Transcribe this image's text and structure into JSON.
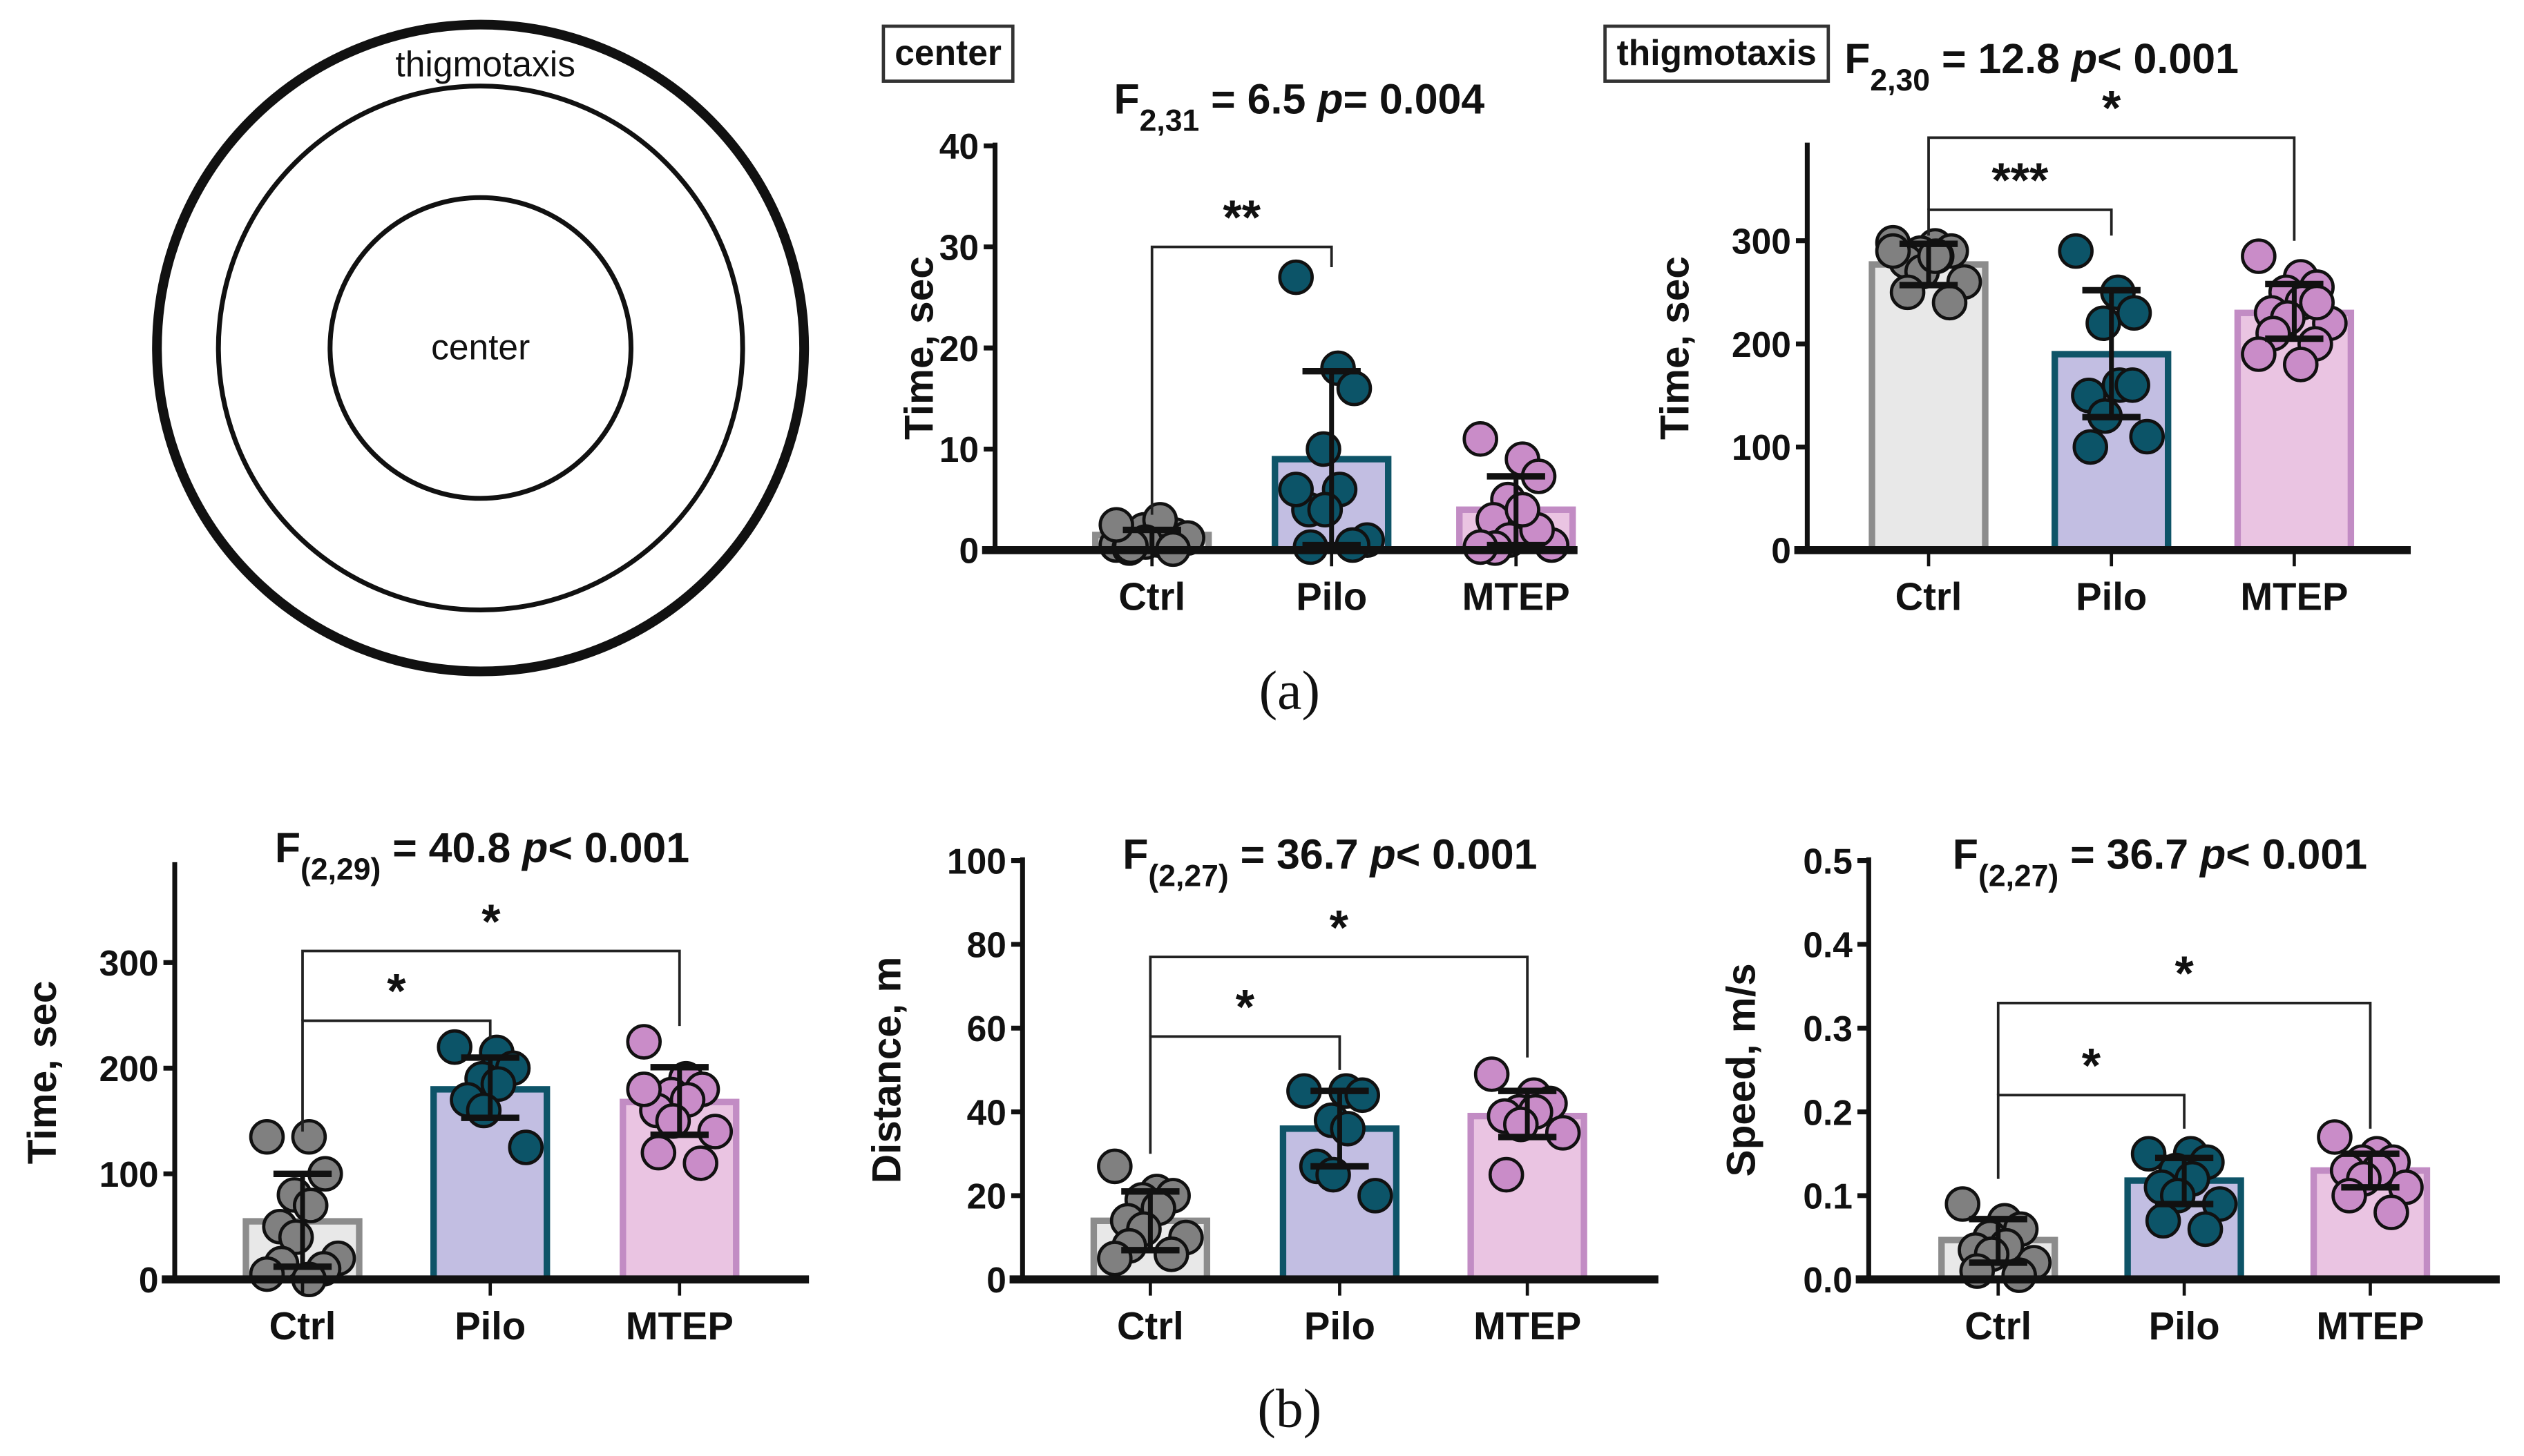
{
  "arena": {
    "outer_label": "thigmotaxis",
    "inner_label": "center"
  },
  "panel_labels": {
    "a": "(a)",
    "b": "(b)"
  },
  "zone_boxes": {
    "center": "center",
    "thigmotaxis": "thigmotaxis"
  },
  "colors": {
    "Ctrl": {
      "fill": "#e8e8e8",
      "stroke": "#8c8c8c",
      "point": "#808080"
    },
    "Pilo": {
      "fill": "#c2bee2",
      "stroke": "#0e5468",
      "point": "#0c5468"
    },
    "MTEP": {
      "fill": "#eac4e2",
      "stroke": "#c28cc4",
      "point": "#c98cc8"
    }
  },
  "chart_data": [
    {
      "type": "bar",
      "panel": "a",
      "zone": "center",
      "title": {
        "F": "F",
        "sub": "2,31",
        "eq": " = 6.5 ",
        "p": "p",
        "rest": "= 0.004"
      },
      "ylabel": "Time, sec",
      "ylim": [
        0,
        40
      ],
      "yticks": [
        "0",
        "10",
        "20",
        "30",
        "40"
      ],
      "ytick_values": [
        0,
        10,
        20,
        30,
        40
      ],
      "categories": [
        "Ctrl",
        "Pilo",
        "MTEP"
      ],
      "values": [
        1.5,
        9,
        4
      ],
      "error": [
        [
          0,
          2
        ],
        [
          0.5,
          17.7
        ],
        [
          0.5,
          7.3
        ]
      ],
      "points": [
        [
          0.5,
          1,
          1.5,
          2,
          3,
          0.2,
          0.8,
          1.2,
          0.4,
          0.1,
          2.5
        ],
        [
          27,
          18,
          16,
          10,
          6,
          4,
          4,
          1,
          0.3,
          0.5,
          6
        ],
        [
          11,
          9,
          7.3,
          5,
          3,
          3,
          1,
          0.5,
          0.2,
          2,
          0.3,
          4
        ]
      ],
      "significance": [
        {
          "from": 0,
          "to": 1,
          "y": 30,
          "left_end": 3.5,
          "right_end": 28,
          "label": "**"
        }
      ]
    },
    {
      "type": "bar",
      "panel": "a",
      "zone": "thigmotaxis",
      "title": {
        "F": "F",
        "sub": "2,30",
        "eq": " = 12.8 ",
        "p": "p",
        "rest": "< 0.001"
      },
      "ylabel": "Time, sec",
      "ylim": [
        0,
        392
      ],
      "yticks": [
        "0",
        "100",
        "200",
        "300"
      ],
      "ytick_values": [
        0,
        100,
        200,
        300
      ],
      "categories": [
        "Ctrl",
        "Pilo",
        "MTEP"
      ],
      "values": [
        277,
        190,
        230
      ],
      "error": [
        [
          257,
          297
        ],
        [
          129,
          252
        ],
        [
          205,
          258
        ]
      ],
      "points": [
        [
          298,
          295,
          290,
          288,
          285,
          280,
          270,
          260,
          250,
          240,
          290,
          285
        ],
        [
          290,
          250,
          230,
          220,
          160,
          150,
          130,
          110,
          100,
          160
        ],
        [
          285,
          265,
          255,
          250,
          240,
          230,
          225,
          220,
          210,
          200,
          190,
          180,
          240
        ]
      ],
      "significance": [
        {
          "from": 0,
          "to": 1,
          "y": 330,
          "left_end": 305,
          "right_end": 305,
          "label": "***"
        },
        {
          "from": 0,
          "to": 2,
          "y": 400,
          "left_end": 330,
          "right_end": 300,
          "label": "*"
        }
      ]
    },
    {
      "type": "bar",
      "panel": "b",
      "title": {
        "F": "F",
        "sub": "(2,29)",
        "eq": " = 40.8 ",
        "p": "p",
        "rest": "< 0.001"
      },
      "ylabel": "Time, sec",
      "ylim": [
        0,
        392
      ],
      "yticks": [
        "0",
        "100",
        "200",
        "300"
      ],
      "ytick_values": [
        0,
        100,
        200,
        300
      ],
      "categories": [
        "Ctrl",
        "Pilo",
        "MTEP"
      ],
      "values": [
        55,
        180,
        168
      ],
      "error": [
        [
          12,
          100
        ],
        [
          153,
          210
        ],
        [
          137,
          201
        ]
      ],
      "points": [
        [
          135,
          135,
          100,
          80,
          70,
          50,
          40,
          20,
          15,
          10,
          5,
          0
        ],
        [
          220,
          215,
          200,
          190,
          185,
          170,
          160,
          125
        ],
        [
          225,
          190,
          180,
          175,
          170,
          160,
          150,
          140,
          120,
          110,
          180
        ]
      ],
      "significance": [
        {
          "from": 0,
          "to": 1,
          "y": 245,
          "left_end": 140,
          "right_end": 228,
          "label": "*"
        },
        {
          "from": 0,
          "to": 2,
          "y": 311,
          "left_end": 245,
          "right_end": 240,
          "label": "*"
        }
      ]
    },
    {
      "type": "bar",
      "panel": "b",
      "title": {
        "F": "F",
        "sub": "(2,27)",
        "eq": " = 36.7 ",
        "p": "p",
        "rest": "< 0.001"
      },
      "ylabel": "Distance, m",
      "ylim": [
        0,
        100
      ],
      "yticks": [
        "0",
        "20",
        "40",
        "60",
        "80",
        "100"
      ],
      "ytick_values": [
        0,
        20,
        40,
        60,
        80,
        100
      ],
      "categories": [
        "Ctrl",
        "Pilo",
        "MTEP"
      ],
      "values": [
        14,
        36,
        39
      ],
      "error": [
        [
          7,
          21
        ],
        [
          27,
          45
        ],
        [
          34,
          45
        ]
      ],
      "points": [
        [
          27,
          21,
          20,
          19,
          17,
          14,
          12,
          10,
          8,
          6,
          5
        ],
        [
          45,
          45,
          44,
          38,
          36,
          27,
          25,
          20
        ],
        [
          49,
          44,
          42,
          40,
          40,
          39,
          37,
          35,
          25
        ]
      ],
      "significance": [
        {
          "from": 0,
          "to": 1,
          "y": 58,
          "left_end": 30,
          "right_end": 50,
          "label": "*"
        },
        {
          "from": 0,
          "to": 2,
          "y": 77,
          "left_end": 58,
          "right_end": 53,
          "label": "*"
        }
      ]
    },
    {
      "type": "bar",
      "panel": "b",
      "title": {
        "F": "F",
        "sub": "(2,27)",
        "eq": " = 36.7 ",
        "p": "p",
        "rest": "< 0.001"
      },
      "ylabel": "Speed, m/s",
      "ylim": [
        0,
        0.5
      ],
      "yticks": [
        "0.0",
        "0.1",
        "0.2",
        "0.3",
        "0.4",
        "0.5"
      ],
      "ytick_values": [
        0,
        0.1,
        0.2,
        0.3,
        0.4,
        0.5
      ],
      "categories": [
        "Ctrl",
        "Pilo",
        "MTEP"
      ],
      "values": [
        0.047,
        0.118,
        0.13
      ],
      "error": [
        [
          0.02,
          0.072
        ],
        [
          0.09,
          0.145
        ],
        [
          0.11,
          0.15
        ]
      ],
      "points": [
        [
          0.09,
          0.07,
          0.06,
          0.05,
          0.04,
          0.035,
          0.03,
          0.02,
          0.01,
          0.005
        ],
        [
          0.15,
          0.15,
          0.14,
          0.13,
          0.12,
          0.11,
          0.1,
          0.09,
          0.07,
          0.06
        ],
        [
          0.17,
          0.15,
          0.14,
          0.14,
          0.13,
          0.13,
          0.12,
          0.11,
          0.1,
          0.08
        ]
      ],
      "significance": [
        {
          "from": 0,
          "to": 1,
          "y": 0.22,
          "left_end": 0.12,
          "right_end": 0.18,
          "label": "*"
        },
        {
          "from": 0,
          "to": 2,
          "y": 0.33,
          "left_end": 0.22,
          "right_end": 0.18,
          "label": "*"
        }
      ]
    }
  ]
}
